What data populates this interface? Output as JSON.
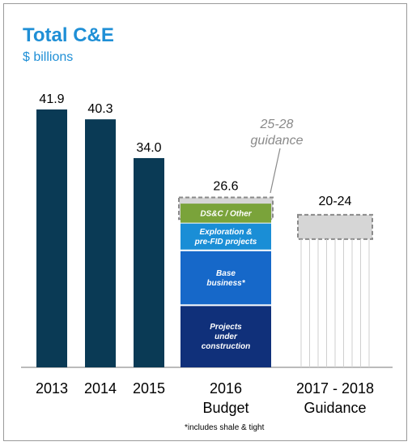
{
  "chart_data": {
    "type": "bar",
    "title": "Total C&E",
    "subtitle": "$ billions",
    "categories": [
      "2013",
      "2014",
      "2015",
      "2016 Budget",
      "2017 - 2018 Guidance"
    ],
    "category_lines": [
      [
        "2013"
      ],
      [
        "2014"
      ],
      [
        "2015"
      ],
      [
        "2016",
        "Budget"
      ],
      [
        "2017 - 2018",
        "Guidance"
      ]
    ],
    "values": [
      41.9,
      40.3,
      34.0,
      26.6,
      null
    ],
    "value_labels": [
      "41.9",
      "40.3",
      "34.0",
      "26.6",
      "20-24"
    ],
    "ylim": [
      0,
      48
    ],
    "bar_color": "#0a3a55",
    "stacked_2016": [
      {
        "name": "Projects under construction",
        "lines": [
          "Projects",
          "under",
          "construction"
        ],
        "value": 10.1,
        "color": "#10307a"
      },
      {
        "name": "Base business*",
        "lines": [
          "Base",
          "business*"
        ],
        "value": 8.9,
        "color": "#1668c9"
      },
      {
        "name": "Exploration & pre-FID projects",
        "lines": [
          "Exploration &",
          "pre-FID projects"
        ],
        "value": 4.5,
        "color": "#1a8ed6"
      },
      {
        "name": "DS&C / Other",
        "lines": [
          "DS&C / Other"
        ],
        "value": 3.1,
        "color": "#7aa33a"
      }
    ],
    "guidance_2016": {
      "range": [
        25,
        28
      ],
      "lines": [
        "25-28",
        "guidance"
      ]
    },
    "guidance_2017_2018": {
      "range": [
        20,
        24
      ],
      "label": "20-24"
    },
    "footnote": "*includes shale & tight"
  }
}
